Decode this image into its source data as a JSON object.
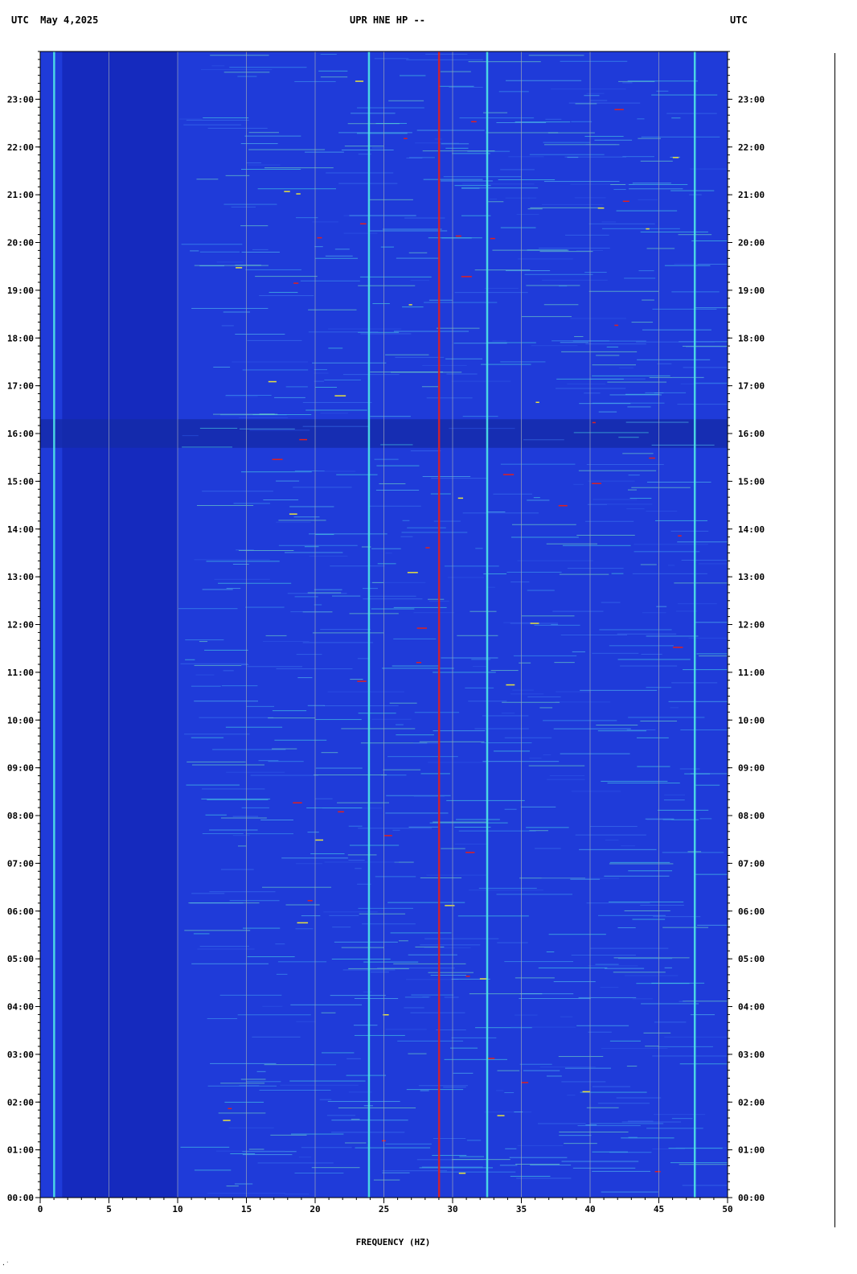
{
  "header": {
    "left_label": "UTC  May 4,2025",
    "center_label": "UPR HNE HP --",
    "right_label": "UTC"
  },
  "corner_mark": "·˙",
  "colors": {
    "background": "#1a33d8",
    "grid": "#9aa3b8",
    "accent_cyan": "#4fe6e6",
    "accent_red": "#e02020",
    "accent_yellow": "#e6e040"
  },
  "chart_data": {
    "type": "heatmap",
    "title": "UPR HNE HP --",
    "xlabel": "FREQUENCY (HZ)",
    "ylabel": "UTC",
    "xlim": [
      0,
      50
    ],
    "ylim": [
      "00:00",
      "24:00"
    ],
    "x_ticks": [
      "0",
      "5",
      "10",
      "15",
      "20",
      "25",
      "30",
      "35",
      "40",
      "45",
      "50"
    ],
    "y_ticks": [
      "00:00",
      "01:00",
      "02:00",
      "03:00",
      "04:00",
      "05:00",
      "06:00",
      "07:00",
      "08:00",
      "09:00",
      "10:00",
      "11:00",
      "12:00",
      "13:00",
      "14:00",
      "15:00",
      "16:00",
      "17:00",
      "18:00",
      "19:00",
      "20:00",
      "21:00",
      "22:00",
      "23:00"
    ],
    "grid": true,
    "persistent_lines_hz": [
      {
        "hz": 1.0,
        "color": "#4fe6e6"
      },
      {
        "hz": 23.9,
        "color": "#4fe6e6"
      },
      {
        "hz": 29.0,
        "color": "#e02020"
      },
      {
        "hz": 32.5,
        "color": "#4fe6e6"
      },
      {
        "hz": 47.6,
        "color": "#4fe6e6"
      }
    ],
    "quiet_band_utc": [
      15.7,
      16.3
    ]
  }
}
